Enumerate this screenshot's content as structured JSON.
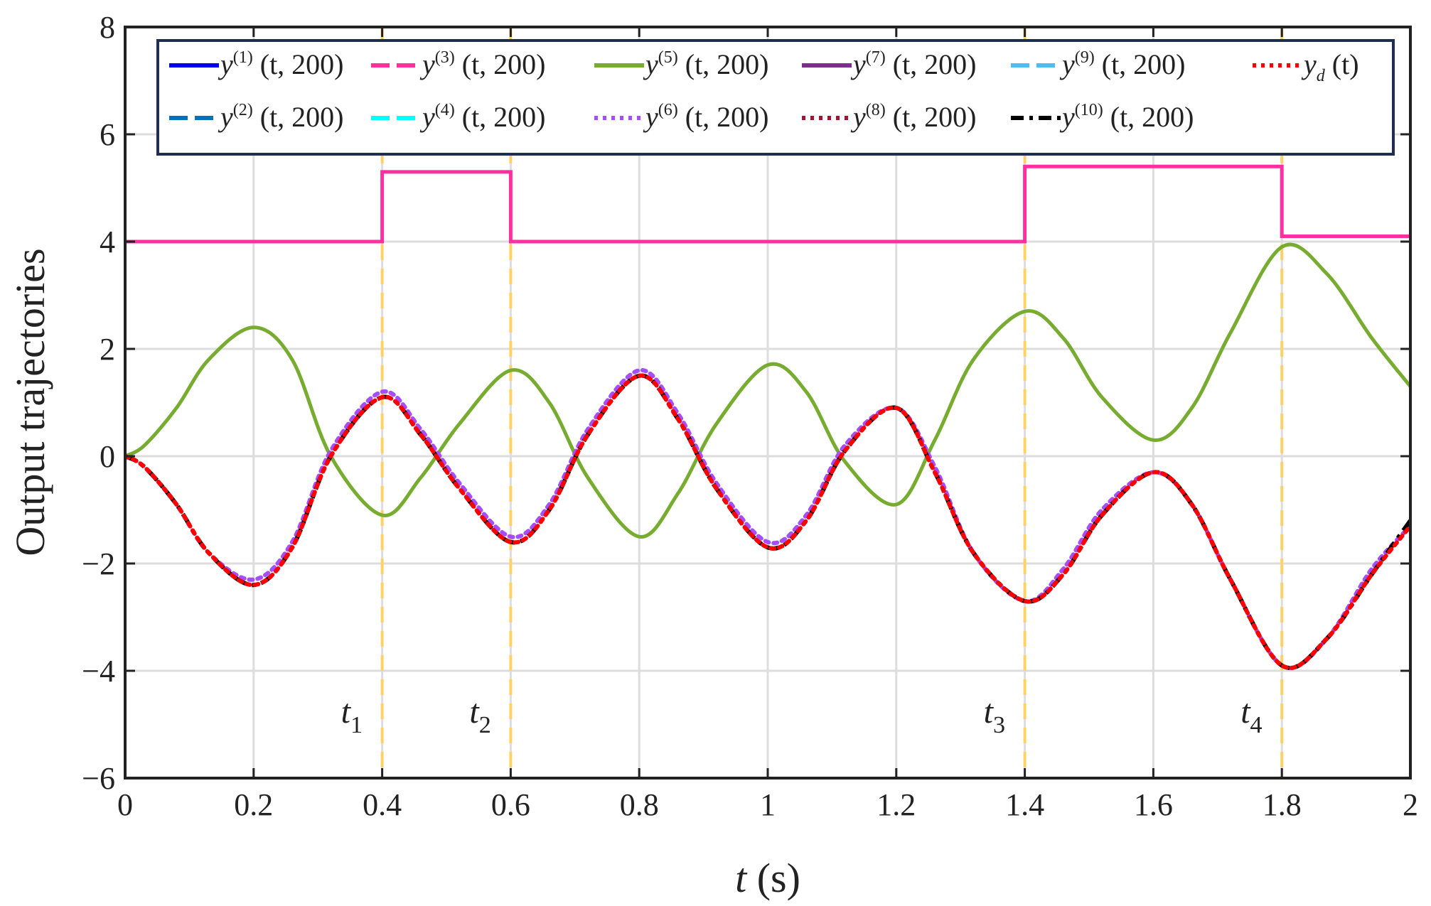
{
  "chart_data": {
    "type": "line",
    "xlabel": {
      "var": "t",
      "unit": " (s)"
    },
    "ylabel": "Output trajectories",
    "xlim": [
      0,
      2
    ],
    "ylim": [
      -6,
      8
    ],
    "xticks": [
      0,
      0.2,
      0.4,
      0.6,
      0.8,
      1,
      1.2,
      1.4,
      1.6,
      1.8,
      2
    ],
    "xtick_labels": [
      "0",
      "0.2",
      "0.4",
      "0.6",
      "0.8",
      "1",
      "1.2",
      "1.4",
      "1.6",
      "1.8",
      "2"
    ],
    "yticks": [
      -6,
      -4,
      -2,
      0,
      2,
      4,
      6,
      8
    ],
    "ytick_labels": [
      "−6",
      "−4",
      "−2",
      "0",
      "2",
      "4",
      "6",
      "8"
    ],
    "grid": true,
    "legend_position": "top",
    "legend": [
      {
        "base": "y",
        "sup": "(1)",
        "args": "(t, 200)",
        "color": "#0000ee",
        "style": "solid"
      },
      {
        "base": "y",
        "sup": "(3)",
        "args": "(t, 200)",
        "color": "#ff2fa0",
        "style": "dashed"
      },
      {
        "base": "y",
        "sup": "(5)",
        "args": "(t, 200)",
        "color": "#77ac30",
        "style": "solid"
      },
      {
        "base": "y",
        "sup": "(7)",
        "args": "(t, 200)",
        "color": "#7e2f8e",
        "style": "solid"
      },
      {
        "base": "y",
        "sup": "(9)",
        "args": "(t, 200)",
        "color": "#4dbeee",
        "style": "dashed"
      },
      {
        "base": "y",
        "sub": "d",
        "args": "(t)",
        "color": "#ff0000",
        "style": "dotted"
      },
      {
        "base": "y",
        "sup": "(2)",
        "args": "(t, 200)",
        "color": "#0072bd",
        "style": "dashed"
      },
      {
        "base": "y",
        "sup": "(4)",
        "args": "(t, 200)",
        "color": "#00ffff",
        "style": "dashed"
      },
      {
        "base": "y",
        "sup": "(6)",
        "args": "(t, 200)",
        "color": "#a64dff",
        "style": "dotted"
      },
      {
        "base": "y",
        "sup": "(8)",
        "args": "(t, 200)",
        "color": "#a2142f",
        "style": "dotted"
      },
      {
        "base": "y",
        "sup": "(10)",
        "args": "(t, 200)",
        "color": "#000000",
        "style": "dashdot"
      }
    ],
    "series": [
      {
        "color": "#ff2fa0",
        "style": "solid",
        "x": [
          0,
          0.4,
          0.4,
          0.6,
          0.6,
          1.4,
          1.4,
          1.8,
          1.8,
          2.0
        ],
        "values": [
          4.0,
          4.0,
          5.3,
          5.3,
          4.0,
          4.0,
          5.4,
          5.4,
          4.1,
          4.1
        ]
      },
      {
        "color": "#77ac30",
        "style": "solid",
        "x": [
          0,
          0.03,
          0.08,
          0.13,
          0.2,
          0.26,
          0.32,
          0.4,
          0.46,
          0.52,
          0.6,
          0.66,
          0.72,
          0.8,
          0.86,
          0.92,
          1.0,
          1.06,
          1.12,
          1.2,
          1.26,
          1.32,
          1.4,
          1.46,
          1.52,
          1.6,
          1.66,
          1.72,
          1.8,
          1.87,
          1.94,
          2.0
        ],
        "values": [
          0.0,
          0.2,
          0.9,
          1.8,
          2.4,
          1.8,
          0.0,
          -1.1,
          -0.4,
          0.6,
          1.6,
          1.0,
          -0.4,
          -1.5,
          -0.7,
          0.6,
          1.7,
          1.2,
          -0.1,
          -0.9,
          0.3,
          1.8,
          2.7,
          2.2,
          1.1,
          0.3,
          0.9,
          2.3,
          3.9,
          3.4,
          2.2,
          1.3
        ]
      },
      {
        "color": "#a64dff",
        "style": "dotted",
        "x": [
          0,
          0.03,
          0.08,
          0.13,
          0.2,
          0.26,
          0.32,
          0.4,
          0.46,
          0.52,
          0.6,
          0.66,
          0.72,
          0.8,
          0.86,
          0.92,
          1.0,
          1.06,
          1.12,
          1.2,
          1.26,
          1.32,
          1.4,
          1.46,
          1.52,
          1.6,
          1.66,
          1.72,
          1.8,
          1.87,
          1.94,
          2.0
        ],
        "values": [
          0.0,
          -0.2,
          -0.9,
          -1.8,
          -2.3,
          -1.6,
          0.1,
          1.2,
          0.5,
          -0.5,
          -1.5,
          -0.9,
          0.5,
          1.6,
          0.8,
          -0.5,
          -1.6,
          -1.1,
          0.2,
          0.9,
          -0.2,
          -1.8,
          -2.7,
          -2.1,
          -1.0,
          -0.3,
          -0.9,
          -2.3,
          -3.9,
          -3.4,
          -2.1,
          -1.3
        ]
      },
      {
        "color": "#000000",
        "style": "dashdot",
        "x": [
          0,
          0.03,
          0.08,
          0.13,
          0.2,
          0.26,
          0.32,
          0.4,
          0.46,
          0.52,
          0.6,
          0.66,
          0.72,
          0.8,
          0.86,
          0.92,
          1.0,
          1.06,
          1.12,
          1.2,
          1.26,
          1.32,
          1.4,
          1.46,
          1.52,
          1.6,
          1.66,
          1.72,
          1.8,
          1.87,
          1.94,
          2.0
        ],
        "values": [
          0.0,
          -0.2,
          -0.9,
          -1.8,
          -2.4,
          -1.7,
          0.0,
          1.1,
          0.4,
          -0.6,
          -1.6,
          -1.0,
          0.4,
          1.5,
          0.7,
          -0.6,
          -1.7,
          -1.2,
          0.1,
          0.9,
          -0.3,
          -1.8,
          -2.7,
          -2.2,
          -1.1,
          -0.3,
          -0.9,
          -2.3,
          -3.9,
          -3.4,
          -2.2,
          -1.2
        ]
      },
      {
        "color": "#ff0000",
        "style": "dotted",
        "x": [
          0,
          0.03,
          0.08,
          0.13,
          0.2,
          0.26,
          0.32,
          0.4,
          0.46,
          0.52,
          0.6,
          0.66,
          0.72,
          0.8,
          0.86,
          0.92,
          1.0,
          1.06,
          1.12,
          1.2,
          1.26,
          1.32,
          1.4,
          1.46,
          1.52,
          1.6,
          1.66,
          1.72,
          1.8,
          1.87,
          1.94,
          2.0
        ],
        "values": [
          0.0,
          -0.2,
          -0.9,
          -1.8,
          -2.4,
          -1.7,
          0.0,
          1.1,
          0.4,
          -0.6,
          -1.6,
          -1.0,
          0.4,
          1.5,
          0.7,
          -0.6,
          -1.7,
          -1.2,
          0.1,
          0.9,
          -0.3,
          -1.8,
          -2.7,
          -2.2,
          -1.1,
          -0.3,
          -0.9,
          -2.3,
          -3.9,
          -3.4,
          -2.2,
          -1.3
        ]
      }
    ],
    "vlines": {
      "color": "#ffd166",
      "style": "dashed",
      "x": [
        0.4,
        0.6,
        1.4,
        1.8
      ]
    },
    "annotations": [
      {
        "base": "t",
        "sub": "1",
        "x": 0.4
      },
      {
        "base": "t",
        "sub": "2",
        "x": 0.6
      },
      {
        "base": "t",
        "sub": "3",
        "x": 1.4
      },
      {
        "base": "t",
        "sub": "4",
        "x": 1.8
      }
    ]
  }
}
